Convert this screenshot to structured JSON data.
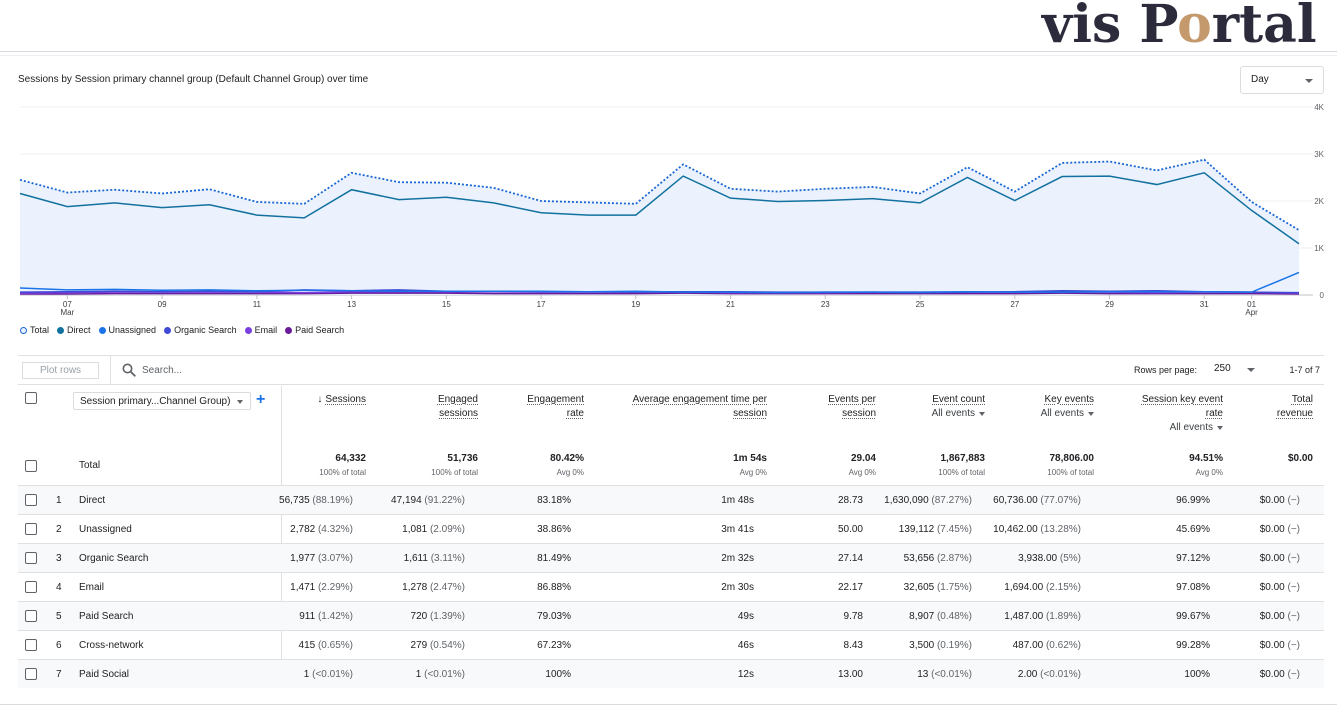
{
  "logo": {
    "part1": "vis P",
    "o": "o",
    "part2": "rtal"
  },
  "chart_title": "Sessions by Session primary channel group (Default Channel Group) over time",
  "granularity": {
    "value": "Day"
  },
  "chart_data": {
    "type": "line",
    "x": [
      "Mar 6",
      "Mar 7",
      "Mar 8",
      "Mar 9",
      "Mar 10",
      "Mar 11",
      "Mar 12",
      "Mar 13",
      "Mar 14",
      "Mar 15",
      "Mar 16",
      "Mar 17",
      "Mar 18",
      "Mar 19",
      "Mar 20",
      "Mar 21",
      "Mar 22",
      "Mar 23",
      "Mar 24",
      "Mar 25",
      "Mar 26",
      "Mar 27",
      "Mar 28",
      "Mar 29",
      "Mar 30",
      "Mar 31",
      "Apr 1",
      "Apr 2"
    ],
    "x_tick_labels": [
      {
        "label": "07",
        "sub": "Mar",
        "index": 1
      },
      {
        "label": "09",
        "sub": "",
        "index": 3
      },
      {
        "label": "11",
        "sub": "",
        "index": 5
      },
      {
        "label": "13",
        "sub": "",
        "index": 7
      },
      {
        "label": "15",
        "sub": "",
        "index": 9
      },
      {
        "label": "17",
        "sub": "",
        "index": 11
      },
      {
        "label": "19",
        "sub": "",
        "index": 13
      },
      {
        "label": "21",
        "sub": "",
        "index": 15
      },
      {
        "label": "23",
        "sub": "",
        "index": 17
      },
      {
        "label": "25",
        "sub": "",
        "index": 19
      },
      {
        "label": "27",
        "sub": "",
        "index": 21
      },
      {
        "label": "29",
        "sub": "",
        "index": 23
      },
      {
        "label": "31",
        "sub": "",
        "index": 25
      },
      {
        "label": "01",
        "sub": "Apr",
        "index": 26
      }
    ],
    "y_ticks": [
      "0",
      "1K",
      "2K",
      "3K",
      "4K"
    ],
    "ylim": [
      0,
      4000
    ],
    "grid": true,
    "legend_position": "bottom-left",
    "series": [
      {
        "name": "Total",
        "color": "#1967d2",
        "style": "dotted",
        "values": [
          2450,
          2180,
          2240,
          2160,
          2250,
          1980,
          1940,
          2600,
          2400,
          2390,
          2280,
          2000,
          1970,
          1940,
          2780,
          2260,
          2200,
          2260,
          2300,
          2160,
          2720,
          2200,
          2810,
          2840,
          2650,
          2880,
          1980,
          1380
        ]
      },
      {
        "name": "Direct",
        "color": "#12719e",
        "style": "solid",
        "values": [
          2160,
          1880,
          1960,
          1860,
          1920,
          1700,
          1640,
          2240,
          2030,
          2080,
          1960,
          1750,
          1700,
          1700,
          2530,
          2060,
          1990,
          2010,
          2050,
          1960,
          2500,
          2010,
          2520,
          2530,
          2350,
          2600,
          1800,
          1090
        ]
      },
      {
        "name": "Unassigned",
        "color": "#1a73e8",
        "style": "solid",
        "values": [
          150,
          110,
          120,
          100,
          110,
          90,
          100,
          90,
          80,
          80,
          80,
          80,
          70,
          80,
          60,
          60,
          50,
          60,
          60,
          60,
          70,
          60,
          60,
          70,
          70,
          70,
          60,
          480
        ]
      },
      {
        "name": "Organic Search",
        "color": "#3f4ad6",
        "style": "solid",
        "values": [
          60,
          70,
          80,
          70,
          80,
          70,
          110,
          90,
          110,
          80,
          80,
          70,
          70,
          60,
          70,
          70,
          60,
          60,
          60,
          50,
          60,
          70,
          90,
          80,
          90,
          70,
          60,
          50
        ]
      },
      {
        "name": "Email",
        "color": "#7b3fe0",
        "style": "solid",
        "values": [
          40,
          50,
          60,
          60,
          60,
          60,
          50,
          70,
          70,
          70,
          70,
          60,
          60,
          60,
          70,
          50,
          50,
          50,
          60,
          60,
          60,
          60,
          70,
          60,
          50,
          60,
          60,
          40
        ]
      },
      {
        "name": "Paid Search",
        "color": "#6a1b9a",
        "style": "solid",
        "values": [
          20,
          20,
          30,
          30,
          30,
          30,
          30,
          40,
          40,
          40,
          30,
          30,
          30,
          30,
          40,
          30,
          30,
          30,
          30,
          30,
          30,
          30,
          40,
          30,
          30,
          30,
          30,
          20
        ]
      }
    ]
  },
  "toolbar": {
    "plot_rows": "Plot rows",
    "search_placeholder": "Search...",
    "rows_per_page_label": "Rows per page:",
    "rows_per_page": "250",
    "range": "1-7 of 7"
  },
  "table": {
    "dimension": "Session primary...Channel Group)",
    "columns": [
      {
        "l1": "Sessions",
        "l2": "",
        "sub": ""
      },
      {
        "l1": "Engaged",
        "l2": "sessions",
        "sub": ""
      },
      {
        "l1": "Engagement",
        "l2": "rate",
        "sub": ""
      },
      {
        "l1": "Average engagement time per",
        "l2": "session",
        "sub": ""
      },
      {
        "l1": "Events per",
        "l2": "session",
        "sub": ""
      },
      {
        "l1": "Event count",
        "l2": "",
        "sub": "All events"
      },
      {
        "l1": "Key events",
        "l2": "",
        "sub": "All events"
      },
      {
        "l1": "Session key event",
        "l2": "rate",
        "sub": "All events"
      },
      {
        "l1": "Total",
        "l2": "revenue",
        "sub": ""
      }
    ],
    "total": {
      "label": "Total",
      "values": [
        "64,332",
        "51,736",
        "80.42%",
        "1m 54s",
        "29.04",
        "1,867,883",
        "78,806.00",
        "94.51%",
        "$0.00"
      ],
      "subs": [
        "100% of total",
        "100% of total",
        "Avg 0%",
        "Avg 0%",
        "Avg 0%",
        "100% of total",
        "100% of total",
        "Avg 0%",
        ""
      ]
    },
    "rows": [
      {
        "idx": "1",
        "name": "Direct",
        "cells": [
          [
            "56,735",
            "(88.19%)"
          ],
          [
            "47,194",
            "(91.22%)"
          ],
          [
            "83.18%",
            ""
          ],
          [
            "1m 48s",
            ""
          ],
          [
            "28.73",
            ""
          ],
          [
            "1,630,090",
            "(87.27%)"
          ],
          [
            "60,736.00",
            "(77.07%)"
          ],
          [
            "96.99%",
            ""
          ],
          [
            "$0.00",
            "(−)"
          ]
        ]
      },
      {
        "idx": "2",
        "name": "Unassigned",
        "cells": [
          [
            "2,782",
            "(4.32%)"
          ],
          [
            "1,081",
            "(2.09%)"
          ],
          [
            "38.86%",
            ""
          ],
          [
            "3m 41s",
            ""
          ],
          [
            "50.00",
            ""
          ],
          [
            "139,112",
            "(7.45%)"
          ],
          [
            "10,462.00",
            "(13.28%)"
          ],
          [
            "45.69%",
            ""
          ],
          [
            "$0.00",
            "(−)"
          ]
        ]
      },
      {
        "idx": "3",
        "name": "Organic Search",
        "cells": [
          [
            "1,977",
            "(3.07%)"
          ],
          [
            "1,611",
            "(3.11%)"
          ],
          [
            "81.49%",
            ""
          ],
          [
            "2m 32s",
            ""
          ],
          [
            "27.14",
            ""
          ],
          [
            "53,656",
            "(2.87%)"
          ],
          [
            "3,938.00",
            "(5%)"
          ],
          [
            "97.12%",
            ""
          ],
          [
            "$0.00",
            "(−)"
          ]
        ]
      },
      {
        "idx": "4",
        "name": "Email",
        "cells": [
          [
            "1,471",
            "(2.29%)"
          ],
          [
            "1,278",
            "(2.47%)"
          ],
          [
            "86.88%",
            ""
          ],
          [
            "2m 30s",
            ""
          ],
          [
            "22.17",
            ""
          ],
          [
            "32,605",
            "(1.75%)"
          ],
          [
            "1,694.00",
            "(2.15%)"
          ],
          [
            "97.08%",
            ""
          ],
          [
            "$0.00",
            "(−)"
          ]
        ]
      },
      {
        "idx": "5",
        "name": "Paid Search",
        "cells": [
          [
            "911",
            "(1.42%)"
          ],
          [
            "720",
            "(1.39%)"
          ],
          [
            "79.03%",
            ""
          ],
          [
            "49s",
            ""
          ],
          [
            "9.78",
            ""
          ],
          [
            "8,907",
            "(0.48%)"
          ],
          [
            "1,487.00",
            "(1.89%)"
          ],
          [
            "99.67%",
            ""
          ],
          [
            "$0.00",
            "(−)"
          ]
        ]
      },
      {
        "idx": "6",
        "name": "Cross-network",
        "cells": [
          [
            "415",
            "(0.65%)"
          ],
          [
            "279",
            "(0.54%)"
          ],
          [
            "67.23%",
            ""
          ],
          [
            "46s",
            ""
          ],
          [
            "8.43",
            ""
          ],
          [
            "3,500",
            "(0.19%)"
          ],
          [
            "487.00",
            "(0.62%)"
          ],
          [
            "99.28%",
            ""
          ],
          [
            "$0.00",
            "(−)"
          ]
        ]
      },
      {
        "idx": "7",
        "name": "Paid Social",
        "cells": [
          [
            "1",
            "(<0.01%)"
          ],
          [
            "1",
            "(<0.01%)"
          ],
          [
            "100%",
            ""
          ],
          [
            "12s",
            ""
          ],
          [
            "13.00",
            ""
          ],
          [
            "13",
            "(<0.01%)"
          ],
          [
            "2.00",
            "(<0.01%)"
          ],
          [
            "100%",
            ""
          ],
          [
            "$0.00",
            "(−)"
          ]
        ]
      }
    ]
  }
}
